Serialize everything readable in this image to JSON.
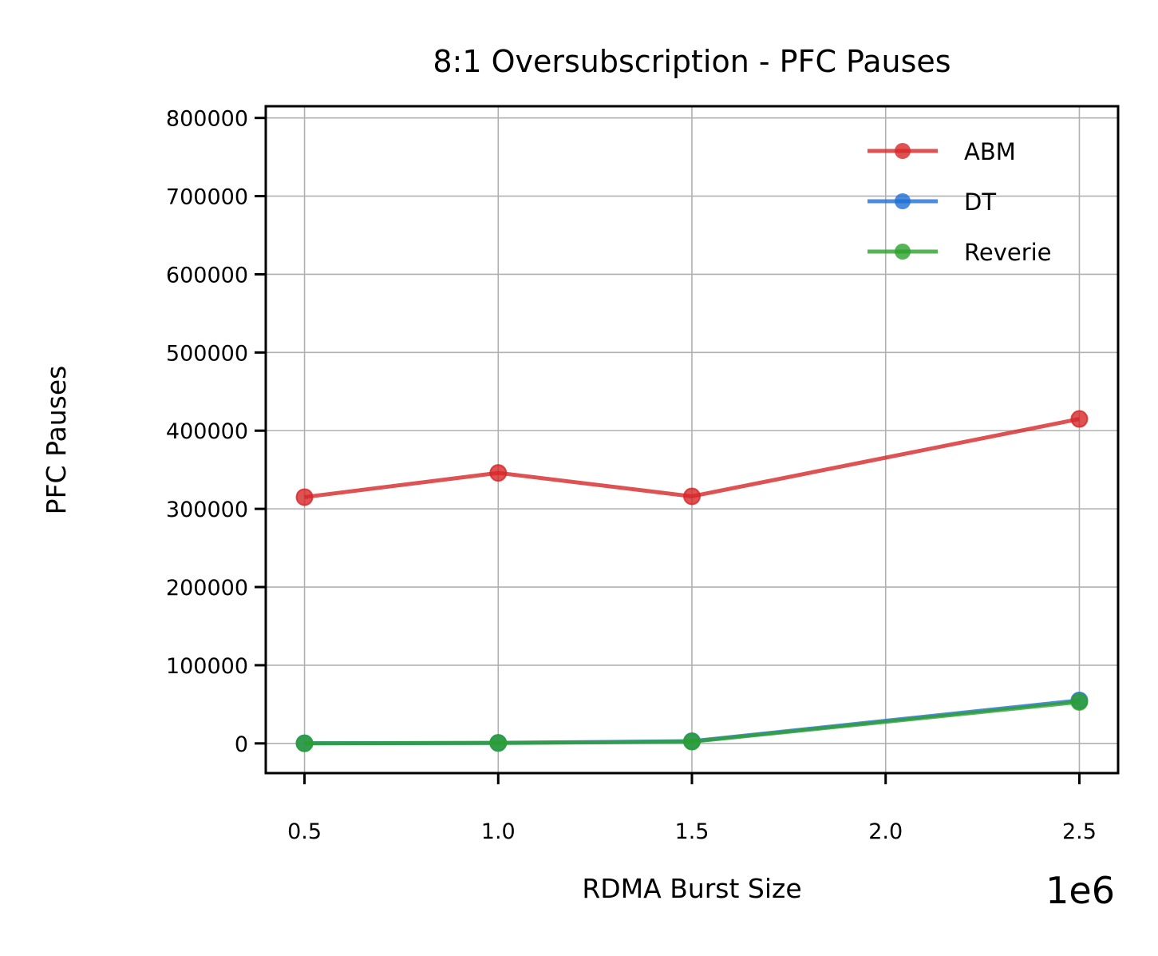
{
  "chart_data": {
    "type": "line",
    "title": "8:1 Oversubscription - PFC Pauses",
    "xlabel": "RDMA Burst Size",
    "ylabel": "PFC Pauses",
    "x_offset_label": "1e6",
    "x": [
      0.5,
      1.0,
      1.5,
      2.5
    ],
    "xlim": [
      0.4,
      2.6
    ],
    "ylim": [
      -38000,
      815000
    ],
    "x_ticks": [
      0.5,
      1.0,
      1.5,
      2.0,
      2.5
    ],
    "x_tick_labels": [
      "0.5",
      "1.0",
      "1.5",
      "2.0",
      "2.5"
    ],
    "y_ticks": [
      0,
      100000,
      200000,
      300000,
      400000,
      500000,
      600000,
      700000,
      800000
    ],
    "y_tick_labels": [
      "0",
      "100000",
      "200000",
      "300000",
      "400000",
      "500000",
      "600000",
      "700000",
      "800000"
    ],
    "grid": true,
    "legend_position": "top-right",
    "series": [
      {
        "name": "ABM",
        "color": "#d62728",
        "values": [
          315000,
          346000,
          316000,
          415000
        ]
      },
      {
        "name": "DT",
        "color": "#1f6fd6",
        "values": [
          200,
          700,
          2800,
          55000
        ]
      },
      {
        "name": "Reverie",
        "color": "#2ca02c",
        "values": [
          100,
          500,
          2200,
          53000
        ]
      }
    ]
  }
}
